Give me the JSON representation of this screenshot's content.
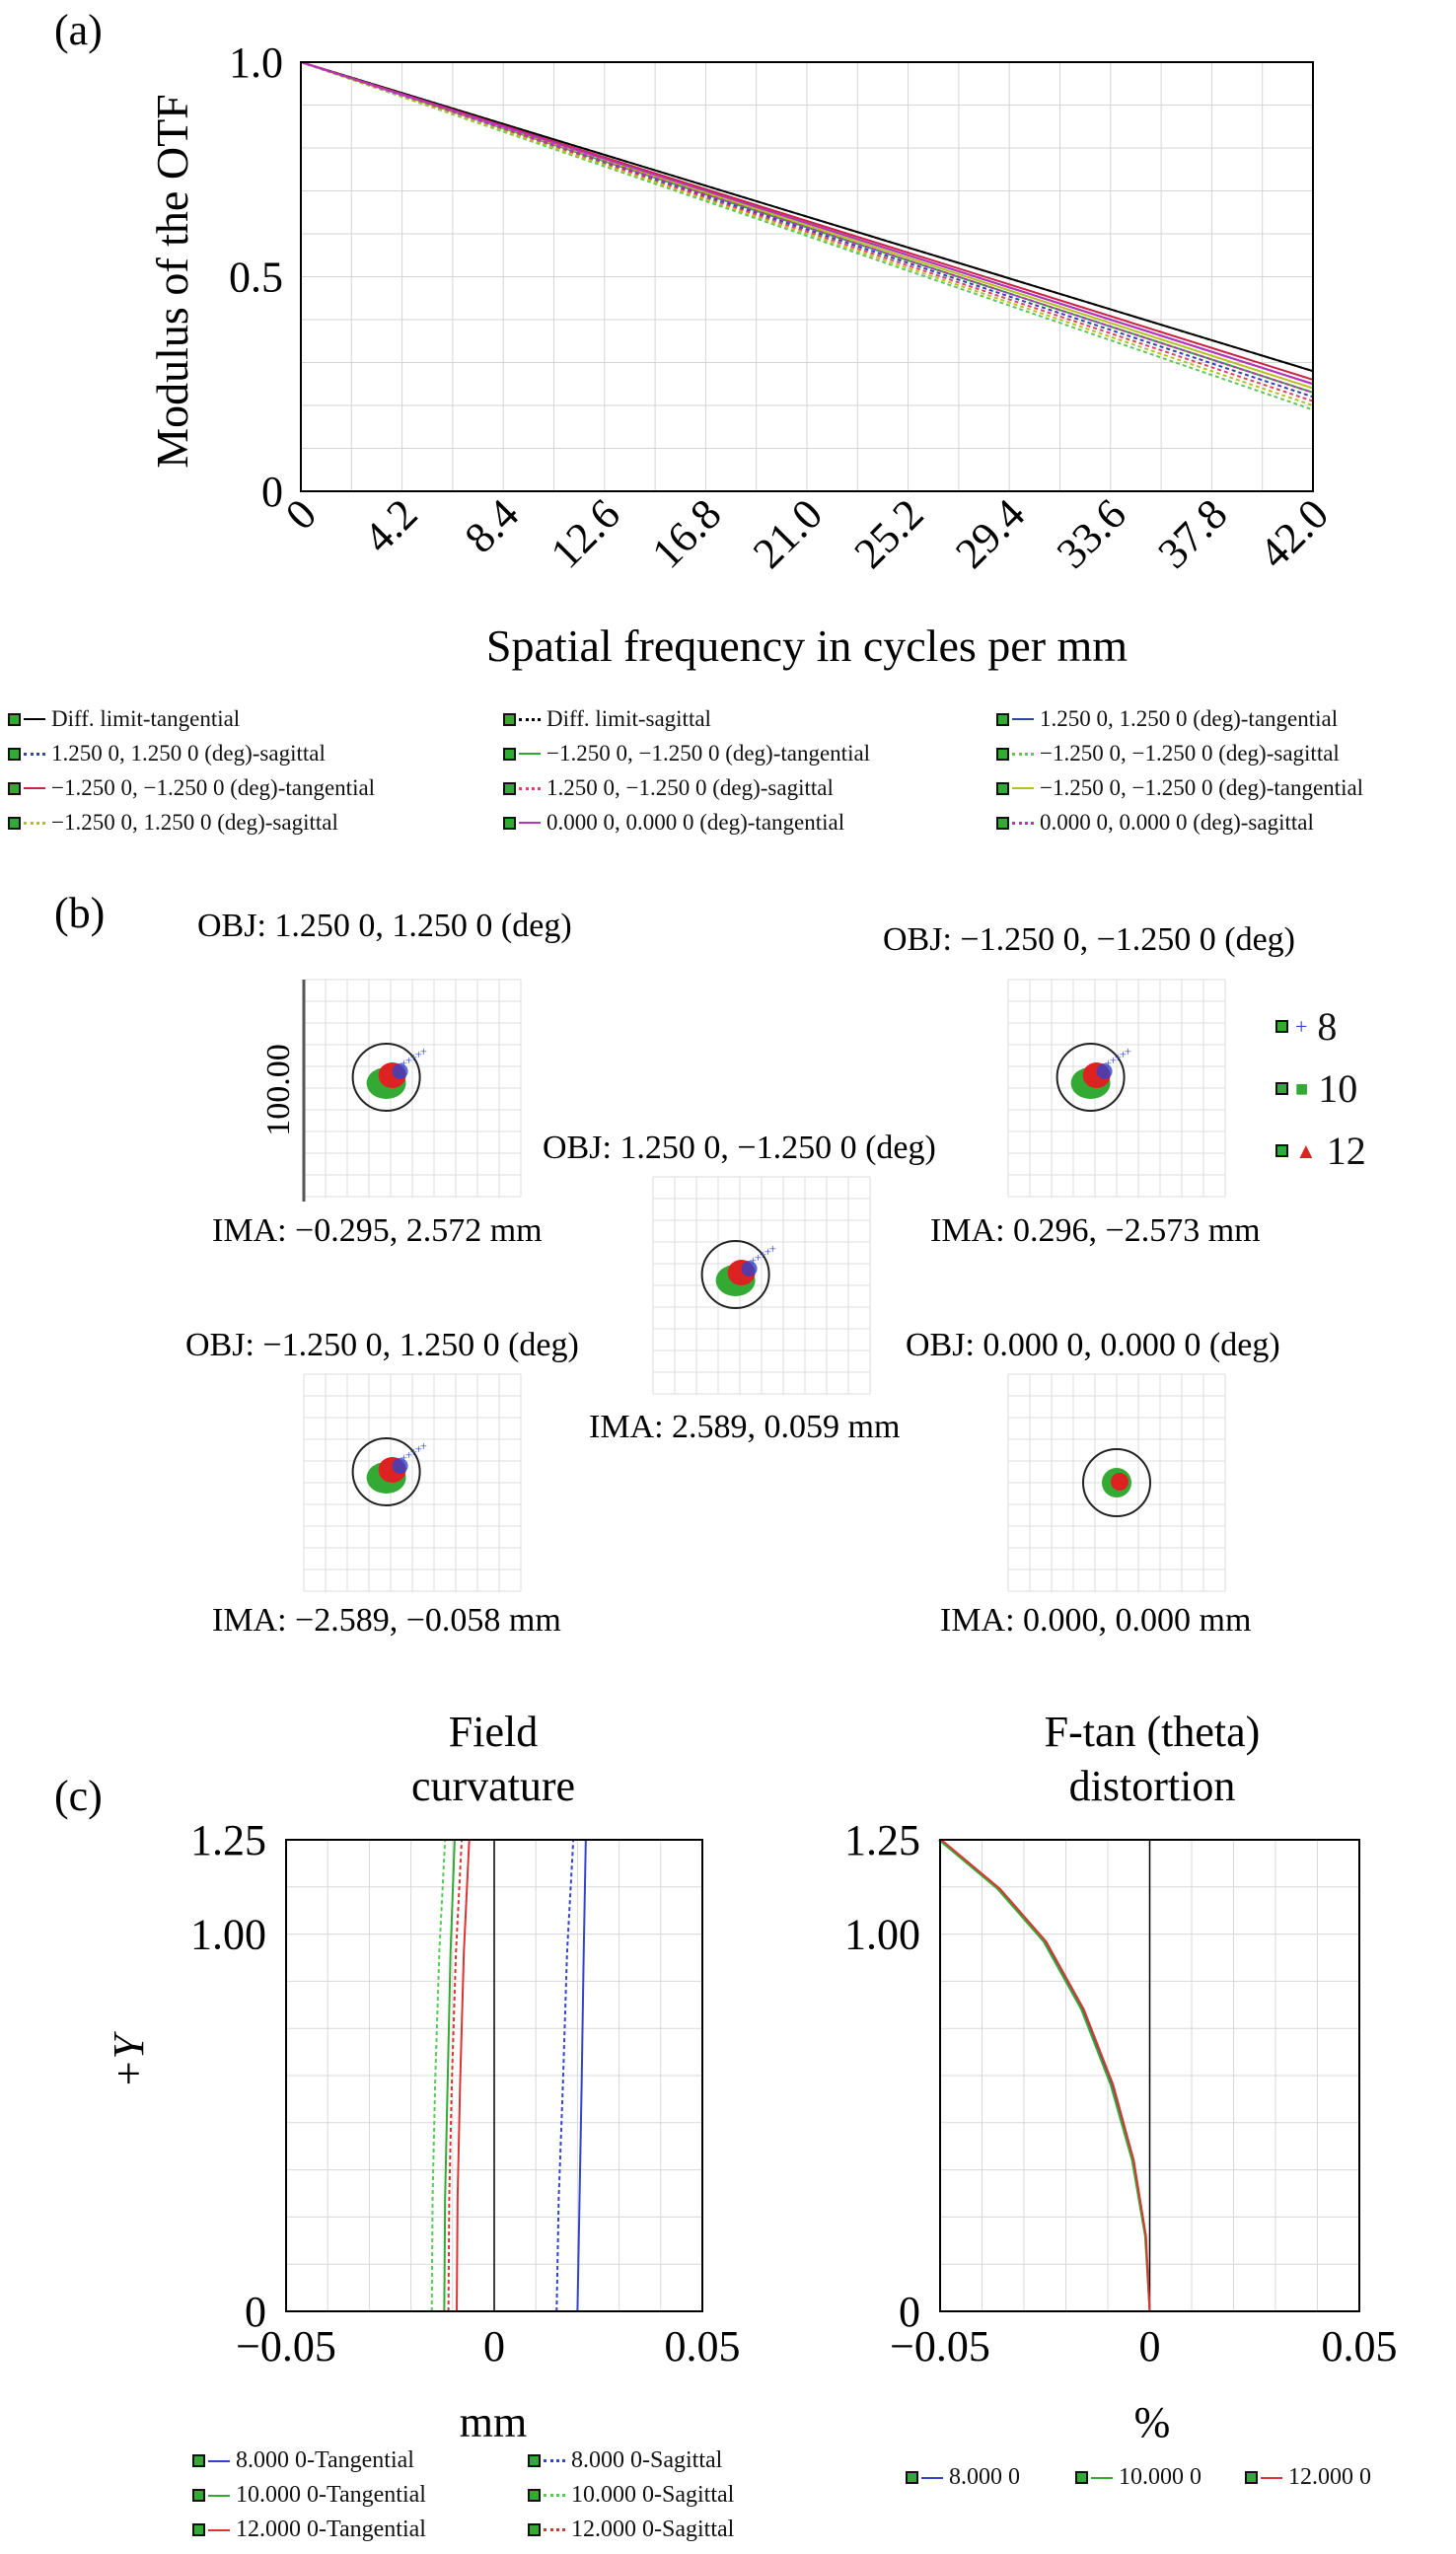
{
  "panels": {
    "a": "(a)",
    "b": "(b)",
    "c": "(c)"
  },
  "chart_data": [
    {
      "type": "line",
      "ylabel": "Modulus of the OTF",
      "xlabel": "Spatial frequency in cycles per mm",
      "xlim": [
        0,
        42
      ],
      "ylim": [
        0,
        1
      ],
      "x_ticks": [
        "0",
        "4.2",
        "8.4",
        "12.6",
        "16.8",
        "21.0",
        "25.2",
        "29.4",
        "33.6",
        "37.8",
        "42.0"
      ],
      "y_ticks": [
        "0",
        "0.5",
        "1.0"
      ],
      "grid": true,
      "x": [
        0,
        42
      ],
      "series": [
        {
          "name": "Diff. limit-tangential",
          "color": "#000000",
          "dash": false,
          "values": [
            1.0,
            0.28
          ]
        },
        {
          "name": "Diff. limit-sagittal",
          "color": "#000000",
          "dash": true,
          "values": [
            1.0,
            0.28
          ]
        },
        {
          "name": "1.250 0, 1.250 0 (deg)-tangential",
          "color": "#3344aa",
          "dash": false,
          "values": [
            1.0,
            0.25
          ]
        },
        {
          "name": "1.250 0, 1.250 0 (deg)-sagittal",
          "color": "#3344aa",
          "dash": true,
          "values": [
            1.0,
            0.22
          ]
        },
        {
          "name": "−1.250 0, −1.250 0 (deg)-tangential",
          "color": "#2faa2f",
          "dash": false,
          "values": [
            1.0,
            0.23
          ]
        },
        {
          "name": "−1.250 0, −1.250 0 (deg)-sagittal",
          "color": "#5cc85c",
          "dash": true,
          "values": [
            1.0,
            0.19
          ]
        },
        {
          "name": "−1.250 0, −1.250 0 (deg)-tangential",
          "color": "#cc2244",
          "dash": false,
          "values": [
            1.0,
            0.26
          ]
        },
        {
          "name": "1.250 0, −1.250 0 (deg)-sagittal",
          "color": "#dd4466",
          "dash": true,
          "values": [
            1.0,
            0.21
          ]
        },
        {
          "name": "−1.250 0, −1.250 0 (deg)-tangential",
          "color": "#b8c020",
          "dash": false,
          "values": [
            1.0,
            0.24
          ]
        },
        {
          "name": "−1.250 0, 1.250 0 (deg)-sagittal",
          "color": "#b8c020",
          "dash": true,
          "values": [
            1.0,
            0.2
          ]
        },
        {
          "name": "0.000 0, 0.000 0 (deg)-tangential",
          "color": "#bb33bb",
          "dash": false,
          "values": [
            1.0,
            0.25
          ]
        },
        {
          "name": "0.000 0, 0.000 0 (deg)-sagittal",
          "color": "#bb33bb",
          "dash": true,
          "values": [
            1.0,
            0.23
          ]
        }
      ]
    },
    {
      "type": "scatter",
      "scale_label": "100.00",
      "legend": [
        {
          "name": "8",
          "color": "#3344cc",
          "marker": "+"
        },
        {
          "name": "10",
          "color": "#33aa33",
          "marker": "square"
        },
        {
          "name": "12",
          "color": "#dd2222",
          "marker": "triangle"
        }
      ],
      "spots": [
        {
          "obj": "OBJ: 1.250 0, 1.250 0 (deg)",
          "ima": "IMA: −0.295, 2.572 mm"
        },
        {
          "obj": "OBJ: 1.250 0, −1.250 0 (deg)",
          "ima": "IMA: 2.589, 0.059 mm"
        },
        {
          "obj": "OBJ: −1.250 0, −1.250 0 (deg)",
          "ima": "IMA: 0.296, −2.573 mm"
        },
        {
          "obj": "OBJ: −1.250 0, 1.250 0 (deg)",
          "ima": "IMA: −2.589, −0.058 mm"
        },
        {
          "obj": "OBJ: 0.000 0, 0.000 0 (deg)",
          "ima": "IMA: 0.000, 0.000 mm"
        }
      ]
    },
    {
      "type": "line",
      "title": "Field curvature",
      "xlabel": "mm",
      "ylabel": "+Y",
      "xlim": [
        -0.05,
        0.05
      ],
      "ylim": [
        0,
        1.25
      ],
      "x_ticks": [
        "−0.05",
        "0",
        "0.05"
      ],
      "y_ticks": [
        "0",
        "1.00",
        "1.25"
      ],
      "grid": true,
      "series": [
        {
          "name": "8.000 0-Tangential",
          "color": "#3344cc",
          "dash": false,
          "x": [
            0.02,
            0.0205,
            0.021,
            0.0215,
            0.022
          ],
          "y": [
            0,
            0.3,
            0.6,
            0.95,
            1.25
          ]
        },
        {
          "name": "8.000 0-Sagittal",
          "color": "#3344cc",
          "dash": true,
          "x": [
            0.015,
            0.0155,
            0.0165,
            0.0175,
            0.019
          ],
          "y": [
            0,
            0.3,
            0.6,
            0.95,
            1.25
          ]
        },
        {
          "name": "10.000 0-Tangential",
          "color": "#33aa33",
          "dash": false,
          "x": [
            -0.012,
            -0.0118,
            -0.0112,
            -0.0105,
            -0.0095
          ],
          "y": [
            0,
            0.3,
            0.6,
            0.95,
            1.25
          ]
        },
        {
          "name": "10.000 0-Sagittal",
          "color": "#55cc55",
          "dash": true,
          "x": [
            -0.015,
            -0.0148,
            -0.0142,
            -0.0132,
            -0.0118
          ],
          "y": [
            0,
            0.3,
            0.6,
            0.95,
            1.25
          ]
        },
        {
          "name": "12.000 0-Tangential",
          "color": "#dd3333",
          "dash": false,
          "x": [
            -0.009,
            -0.0088,
            -0.0082,
            -0.0073,
            -0.006
          ],
          "y": [
            0,
            0.3,
            0.6,
            0.95,
            1.25
          ]
        },
        {
          "name": "12.000 0-Sagittal",
          "color": "#dd3333",
          "dash": true,
          "x": [
            -0.011,
            -0.0108,
            -0.0102,
            -0.0092,
            -0.0078
          ],
          "y": [
            0,
            0.3,
            0.6,
            0.95,
            1.25
          ]
        }
      ]
    },
    {
      "type": "line",
      "title": "F-tan (theta) distortion",
      "xlabel": "%",
      "xlim": [
        -0.05,
        0.05
      ],
      "ylim": [
        0,
        1.25
      ],
      "x_ticks": [
        "−0.05",
        "0",
        "0.05"
      ],
      "y_ticks": [
        "0",
        "1.00",
        "1.25"
      ],
      "grid": true,
      "series": [
        {
          "name": "8.000 0",
          "color": "#3344cc",
          "x": [
            0,
            -0.001,
            -0.004,
            -0.009,
            -0.016,
            -0.025,
            -0.036,
            -0.05
          ],
          "y": [
            0,
            0.2,
            0.4,
            0.6,
            0.8,
            0.98,
            1.12,
            1.25
          ]
        },
        {
          "name": "10.000 0",
          "color": "#33aa33",
          "x": [
            0,
            -0.0011,
            -0.0042,
            -0.0093,
            -0.0163,
            -0.0253,
            -0.0363,
            -0.0503
          ],
          "y": [
            0,
            0.2,
            0.4,
            0.6,
            0.8,
            0.98,
            1.12,
            1.25
          ]
        },
        {
          "name": "12.000 0",
          "color": "#dd3333",
          "x": [
            0,
            -0.0009,
            -0.0038,
            -0.0087,
            -0.0157,
            -0.0247,
            -0.0357,
            -0.0497
          ],
          "y": [
            0,
            0.2,
            0.4,
            0.6,
            0.8,
            0.98,
            1.12,
            1.25
          ]
        }
      ]
    }
  ]
}
